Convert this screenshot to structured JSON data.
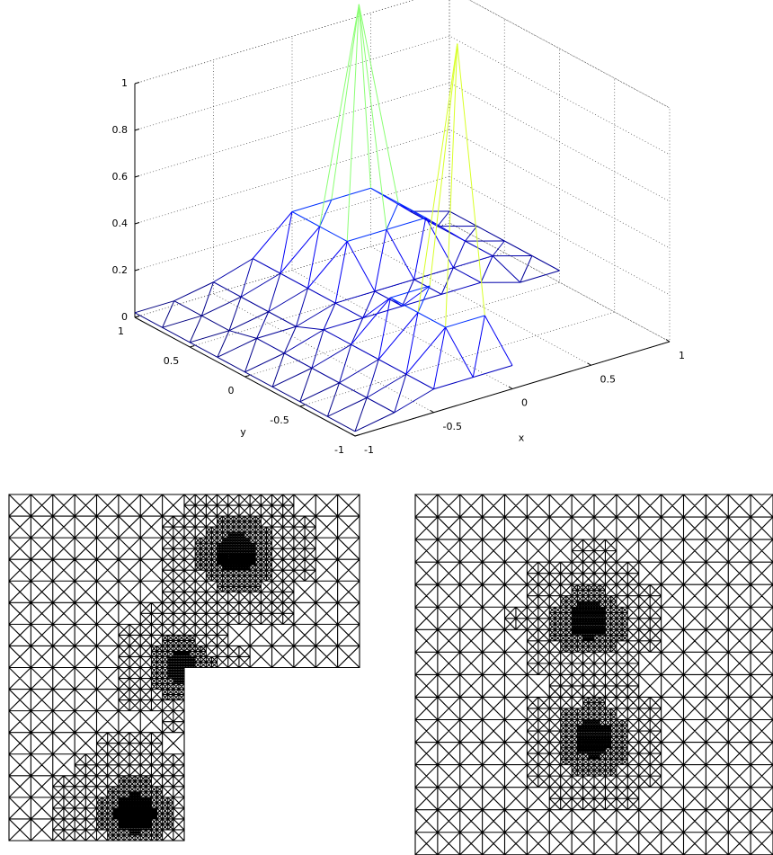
{
  "chart_data": {
    "type": "mesh3d",
    "x": [
      -1,
      -0.75,
      -0.5,
      -0.25,
      0,
      0.25,
      0.5,
      0.75,
      1
    ],
    "y": [
      -1,
      -0.75,
      -0.5,
      -0.25,
      0,
      0.25,
      0.5,
      0.75,
      1
    ],
    "z": [
      [
        0.02,
        0.05,
        0.1,
        0.1,
        0.1,
        null,
        null,
        null,
        null
      ],
      [
        0.02,
        0.05,
        0.1,
        0.25,
        0.25,
        null,
        null,
        null,
        null
      ],
      [
        0.02,
        0.05,
        0.1,
        0.25,
        1.35,
        null,
        null,
        null,
        null
      ],
      [
        0.02,
        0.05,
        0.1,
        0.25,
        0.25,
        null,
        null,
        null,
        null
      ],
      [
        0.02,
        0.05,
        0.1,
        0.1,
        0.1,
        0.1,
        0.1,
        0.05,
        0.05
      ],
      [
        0.02,
        0.05,
        0.05,
        0.1,
        0.1,
        0.1,
        0.1,
        0.1,
        0.05
      ],
      [
        0.02,
        0.02,
        0.05,
        0.1,
        0.25,
        0.25,
        0.25,
        0.1,
        0.05
      ],
      [
        0.02,
        0.02,
        0.05,
        0.1,
        0.25,
        1.15,
        0.25,
        0.1,
        0.05
      ],
      [
        0.02,
        0.02,
        0.05,
        0.1,
        0.25,
        0.25,
        0.25,
        0.1,
        0.05
      ]
    ],
    "xlim": [
      -1,
      1
    ],
    "ylim": [
      -1,
      1
    ],
    "zlim": [
      0,
      1
    ],
    "xticks": [
      -1,
      -0.5,
      0,
      0.5,
      1
    ],
    "yticks": [
      -1,
      -0.5,
      0,
      0.5,
      1
    ],
    "zticks": [
      0,
      0.2,
      0.4,
      0.6,
      0.8,
      1
    ],
    "xlabel": "x",
    "ylabel": "y",
    "grid": true,
    "colormap": "jet"
  }
}
